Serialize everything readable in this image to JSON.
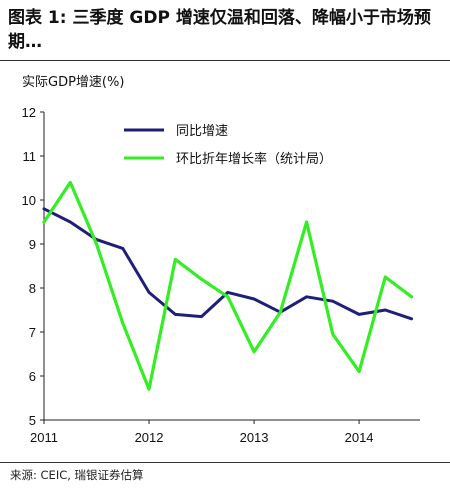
{
  "title": "图表 1: 三季度 GDP 增速仅温和回落、降幅小于市场预期…",
  "source": "来源: CEIC, 瑞银证券估算",
  "chart_data": {
    "type": "line",
    "ylabel": "实际GDP增速(%)",
    "xlabel": "",
    "ylim": [
      5,
      12
    ],
    "yticks": [
      "5",
      "6",
      "7",
      "8",
      "9",
      "10",
      "11",
      "12"
    ],
    "xticks": [
      {
        "label": "2011",
        "x": 2011.0
      },
      {
        "label": "2012",
        "x": 2012.0
      },
      {
        "label": "2013",
        "x": 2013.0
      },
      {
        "label": "2014",
        "x": 2014.0
      }
    ],
    "legend_position": "top-right",
    "series": [
      {
        "name": "同比增速",
        "color": "#1f1f7a",
        "x": [
          2011.0,
          2011.25,
          2011.5,
          2011.75,
          2012.0,
          2012.25,
          2012.5,
          2012.75,
          2013.0,
          2013.25,
          2013.5,
          2013.75,
          2014.0,
          2014.25,
          2014.5
        ],
        "y": [
          9.8,
          9.5,
          9.1,
          8.9,
          7.9,
          7.4,
          7.35,
          7.9,
          7.75,
          7.45,
          7.8,
          7.7,
          7.4,
          7.5,
          7.3
        ]
      },
      {
        "name": "环比折年增长率（统计局）",
        "color": "#33ee22",
        "x": [
          2011.0,
          2011.25,
          2011.5,
          2011.75,
          2012.0,
          2012.25,
          2012.5,
          2012.75,
          2013.0,
          2013.25,
          2013.5,
          2013.75,
          2014.0,
          2014.25,
          2014.5
        ],
        "y": [
          9.5,
          10.4,
          9.0,
          7.2,
          5.7,
          8.65,
          8.2,
          7.8,
          6.55,
          7.45,
          9.5,
          6.95,
          6.1,
          8.25,
          7.8
        ]
      }
    ]
  }
}
